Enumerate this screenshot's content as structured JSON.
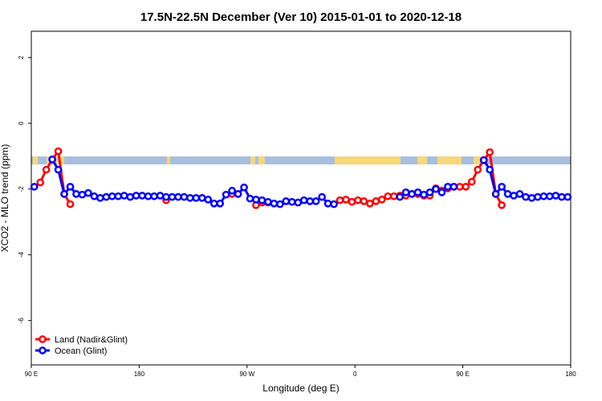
{
  "chart_data": {
    "type": "line",
    "title": "17.5N-22.5N December (Ver 10)   2015-01-01 to 2020-12-18",
    "xlabel": "Longitude (deg E)",
    "ylabel": "XCO2 - MLO trend (ppm)",
    "x": [
      92.5,
      97.5,
      102.5,
      107.5,
      112.5,
      117.5,
      122.5,
      127.5,
      132.5,
      137.5,
      142.5,
      147.5,
      152.5,
      157.5,
      162.5,
      167.5,
      172.5,
      177.5,
      182.5,
      187.5,
      192.5,
      197.5,
      202.5,
      207.5,
      212.5,
      217.5,
      222.5,
      227.5,
      232.5,
      237.5,
      242.5,
      247.5,
      252.5,
      257.5,
      262.5,
      267.5,
      272.5,
      277.5,
      282.5,
      287.5,
      292.5,
      297.5,
      302.5,
      307.5,
      312.5,
      317.5,
      322.5,
      327.5,
      332.5,
      337.5,
      342.5,
      347.5,
      352.5,
      357.5,
      362.5,
      367.5,
      372.5,
      377.5,
      382.5,
      387.5,
      392.5,
      397.5,
      402.5,
      407.5,
      412.5,
      417.5,
      422.5,
      427.5,
      432.5,
      437.5,
      442.5,
      447.5,
      452.5,
      457.5,
      462.5,
      467.5,
      472.5,
      477.5,
      482.5,
      487.5,
      492.5,
      497.5,
      502.5,
      507.5,
      512.5,
      517.5,
      522.5,
      527.5,
      532.5,
      537.5
    ],
    "series": [
      {
        "name": "Land (Nadir&Glint)",
        "color": "#ff0000",
        "values": [
          null,
          -1.8,
          -1.41,
          -1.1,
          -0.85,
          -2.15,
          -2.46,
          null,
          null,
          null,
          null,
          null,
          null,
          null,
          null,
          null,
          null,
          null,
          null,
          null,
          null,
          null,
          -2.34,
          null,
          null,
          null,
          null,
          null,
          null,
          null,
          null,
          null,
          null,
          -2.15,
          -2.15,
          null,
          null,
          -2.49,
          -2.41,
          -2.41,
          null,
          null,
          null,
          null,
          null,
          null,
          null,
          null,
          null,
          null,
          null,
          -2.34,
          -2.32,
          -2.39,
          -2.34,
          -2.37,
          -2.44,
          -2.37,
          -2.32,
          -2.22,
          -2.22,
          -2.2,
          -2.2,
          -2.15,
          -2.15,
          -2.2,
          -2.2,
          -1.98,
          -2.05,
          -1.98,
          -1.93,
          -1.93,
          -1.93,
          -1.78,
          -1.41,
          -1.12,
          -0.88,
          -2.15,
          -2.49,
          null,
          null,
          null,
          null,
          null,
          null,
          null,
          null,
          null,
          null,
          null
        ]
      },
      {
        "name": "Ocean (Glint)",
        "color": "#0000ff",
        "values": [
          -1.93,
          null,
          null,
          -1.1,
          -1.41,
          -2.15,
          -1.93,
          -2.15,
          -2.17,
          -2.12,
          -2.22,
          -2.27,
          -2.24,
          -2.22,
          -2.22,
          -2.2,
          -2.24,
          -2.2,
          -2.2,
          -2.22,
          -2.22,
          -2.2,
          -2.24,
          -2.24,
          -2.24,
          -2.24,
          -2.27,
          -2.27,
          -2.27,
          -2.32,
          -2.44,
          -2.44,
          -2.17,
          -2.05,
          -2.15,
          -1.95,
          -2.29,
          -2.32,
          -2.34,
          -2.39,
          -2.44,
          -2.46,
          -2.37,
          -2.39,
          -2.41,
          -2.34,
          -2.37,
          -2.37,
          -2.24,
          -2.44,
          -2.46,
          null,
          null,
          null,
          null,
          null,
          null,
          null,
          null,
          null,
          null,
          -2.24,
          -2.1,
          -2.15,
          -2.1,
          -2.17,
          -2.1,
          -2.0,
          -2.1,
          -1.93,
          -1.93,
          null,
          null,
          null,
          null,
          -1.12,
          -1.41,
          -2.15,
          -1.93,
          -2.15,
          -2.2,
          -2.15,
          -2.24,
          -2.27,
          -2.24,
          -2.22,
          -2.22,
          -2.2,
          -2.24,
          -2.24
        ]
      }
    ],
    "xlim": [
      90,
      540
    ],
    "xticks": [
      {
        "value": 90,
        "label": "90 E"
      },
      180,
      {
        "value": 270,
        "label": "90 W"
      },
      {
        "value": 360,
        "label": "0"
      },
      {
        "value": 450,
        "label": "90 E"
      },
      {
        "value": 540,
        "label": "180"
      }
    ],
    "ylim": [
      -7.35,
      2.8
    ],
    "yticks": [
      -6,
      -4,
      -2,
      0,
      2
    ],
    "legend": "bottom-left"
  }
}
